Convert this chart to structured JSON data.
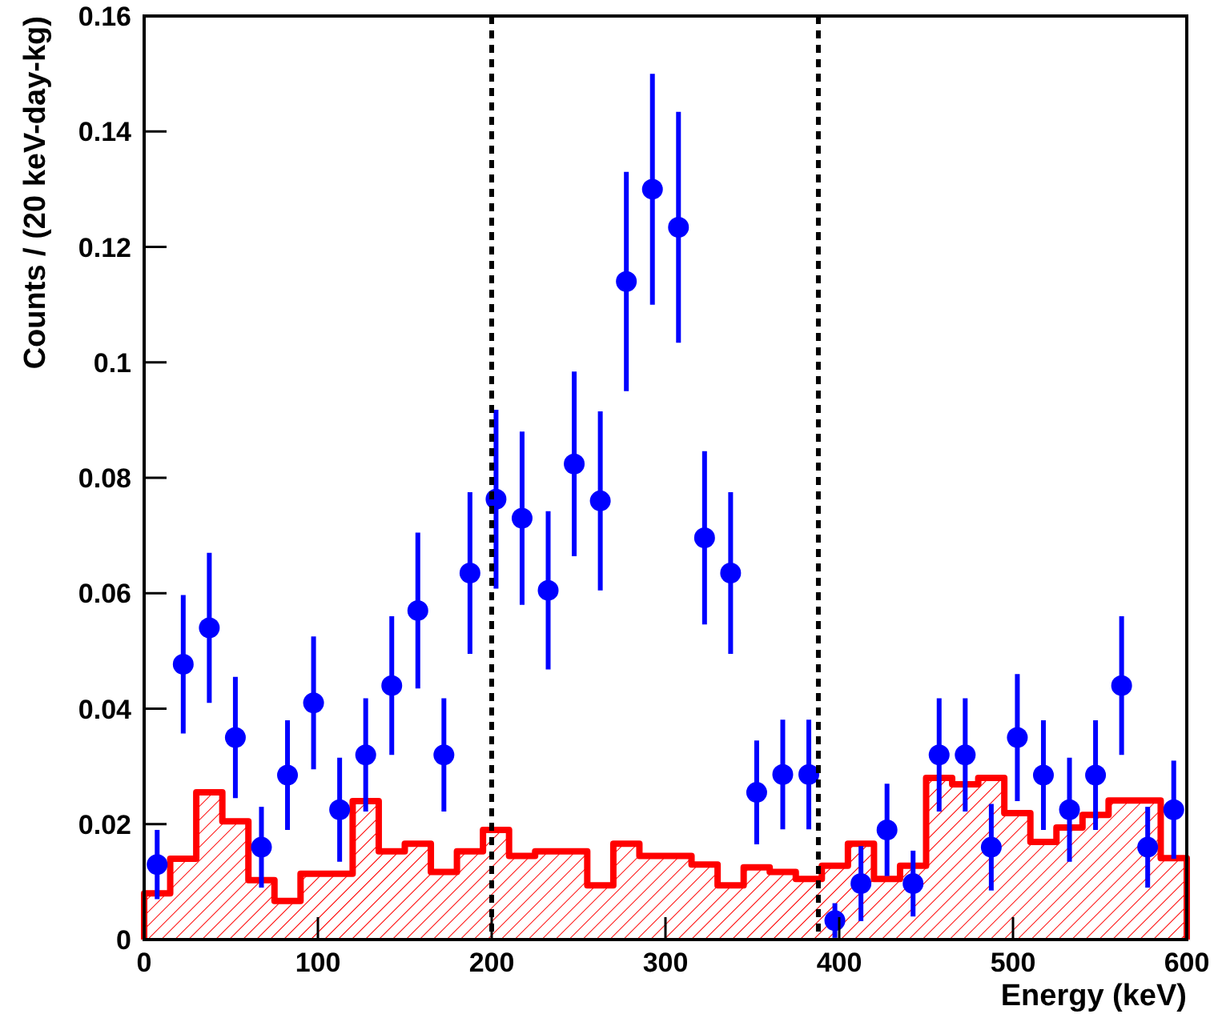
{
  "chart_data": {
    "type": "histogram",
    "xlabel": "Energy (keV)",
    "ylabel": "Counts / (20 keV-day-kg)",
    "xlim": [
      0,
      600
    ],
    "xticks": [
      0,
      100,
      200,
      300,
      400,
      500,
      600
    ],
    "ylim": [
      0,
      0.16
    ],
    "yticks": [
      0,
      0.02,
      0.04,
      0.06,
      0.08,
      0.1,
      0.12,
      0.14,
      0.16
    ],
    "bins": [
      0,
      15,
      30,
      45,
      60,
      75,
      90,
      105,
      120,
      135,
      150,
      165,
      180,
      195,
      210,
      225,
      240,
      255,
      270,
      285,
      300,
      315,
      330,
      345,
      360,
      375,
      390,
      405,
      420,
      435,
      450,
      465,
      480,
      495,
      510,
      525,
      540,
      555,
      570,
      585,
      600
    ],
    "series": [
      {
        "color": "#ff0000",
        "values": [
          0.008,
          0.014,
          0.0255,
          0.0205,
          0.0103,
          0.0067,
          0.0114,
          0.0114,
          0.024,
          0.0153,
          0.0166,
          0.0117,
          0.0153,
          0.019,
          0.0145,
          0.0153,
          0.0153,
          0.0094,
          0.0166,
          0.0145,
          0.0145,
          0.013,
          0.0094,
          0.0125,
          0.0117,
          0.0105,
          0.0128,
          0.0166,
          0.0105,
          0.0128,
          0.028,
          0.0269,
          0.028,
          0.0219,
          0.0169,
          0.0194,
          0.0216,
          0.0241,
          0.0241,
          0.0141
        ]
      },
      {
        "type": "scatter",
        "color": "#0000ff",
        "x": [
          7.5,
          22.5,
          37.5,
          52.5,
          67.5,
          82.5,
          97.5,
          112.5,
          127.5,
          142.5,
          157.5,
          172.5,
          187.5,
          202.5,
          217.5,
          232.5,
          247.5,
          262.5,
          277.5,
          292.5,
          307.5,
          322.5,
          337.5,
          352.5,
          367.5,
          382.5,
          397.5,
          412.5,
          427.5,
          442.5,
          457.5,
          472.5,
          487.5,
          502.5,
          517.5,
          532.5,
          547.5,
          562.5,
          577.5,
          592.5
        ],
        "values": [
          0.013,
          0.0477,
          0.054,
          0.035,
          0.016,
          0.0285,
          0.041,
          0.0225,
          0.032,
          0.044,
          0.057,
          0.032,
          0.0635,
          0.0763,
          0.073,
          0.0605,
          0.0824,
          0.076,
          0.114,
          0.13,
          0.1234,
          0.0696,
          0.0635,
          0.0255,
          0.0286,
          0.0286,
          0.0033,
          0.0097,
          0.019,
          0.0097,
          0.032,
          0.032,
          0.016,
          0.035,
          0.0285,
          0.0225,
          0.0285,
          0.044,
          0.016,
          0.0225
        ],
        "errors": [
          0.006,
          0.012,
          0.013,
          0.0105,
          0.007,
          0.0095,
          0.0115,
          0.009,
          0.0098,
          0.012,
          0.0135,
          0.0098,
          0.014,
          0.0155,
          0.015,
          0.0137,
          0.016,
          0.0155,
          0.019,
          0.02,
          0.02,
          0.015,
          0.014,
          0.009,
          0.0095,
          0.0095,
          0.003,
          0.0065,
          0.008,
          0.0057,
          0.0098,
          0.0098,
          0.0075,
          0.011,
          0.0095,
          0.009,
          0.0095,
          0.012,
          0.007,
          0.0085
        ]
      }
    ],
    "marker": "circle",
    "ref_lines": [
      {
        "axis": "x",
        "value": 200,
        "color": "#000000",
        "line_style": "dashed"
      },
      {
        "axis": "x",
        "value": 388,
        "color": "#000000",
        "line_style": "dashed"
      }
    ],
    "grid": false
  }
}
